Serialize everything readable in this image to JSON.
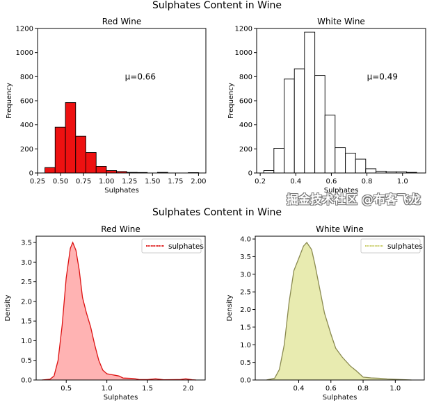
{
  "figures": [
    {
      "suptitle": "Sulphates Content in Wine"
    },
    {
      "suptitle": "Sulphates Content in Wine"
    }
  ],
  "watermark": "掘金技术社区 @布客飞龙",
  "chart_data": [
    {
      "type": "bar",
      "subtype": "histogram",
      "title": "Red Wine",
      "xlabel": "Sulphates",
      "ylabel": "Frequency",
      "bar_color": "#ee1111",
      "edge_color": "#000000",
      "bin_edges": [
        0.33,
        0.441,
        0.553,
        0.664,
        0.775,
        0.887,
        0.998,
        1.109,
        1.22,
        1.332,
        1.443,
        1.554,
        1.666,
        1.777,
        1.888,
        2.0
      ],
      "values": [
        45,
        380,
        585,
        305,
        170,
        55,
        20,
        12,
        5,
        4,
        0,
        5,
        0,
        0,
        3
      ],
      "xlim": [
        0.25,
        2.08
      ],
      "ylim": [
        0,
        1200
      ],
      "xtick_labels": [
        "0.25",
        "0.50",
        "0.75",
        "1.00",
        "1.25",
        "1.50",
        "1.75",
        "2.00"
      ],
      "ytick_labels": [
        "0",
        "200",
        "400",
        "600",
        "800",
        "1000",
        "1200"
      ],
      "annotation": {
        "text": "μ=0.66",
        "x": 1.2,
        "y": 800
      },
      "grid": false
    },
    {
      "type": "bar",
      "subtype": "histogram",
      "title": "White Wine",
      "xlabel": "Sulphates",
      "ylabel": "Frequency",
      "bar_color": "#ffffff",
      "edge_color": "#000000",
      "bin_edges": [
        0.22,
        0.277,
        0.335,
        0.392,
        0.449,
        0.507,
        0.564,
        0.621,
        0.679,
        0.736,
        0.793,
        0.851,
        0.908,
        0.965,
        1.023,
        1.08
      ],
      "values": [
        20,
        205,
        780,
        865,
        1170,
        810,
        480,
        210,
        165,
        115,
        35,
        15,
        10,
        10,
        5
      ],
      "xlim": [
        0.18,
        1.13
      ],
      "ylim": [
        0,
        1200
      ],
      "xtick_labels": [
        "0.2",
        "0.4",
        "0.6",
        "0.8",
        "1.0"
      ],
      "ytick_labels": [
        "0",
        "200",
        "400",
        "600",
        "800",
        "1000",
        "1200"
      ],
      "annotation": {
        "text": "μ=0.49",
        "x": 0.8,
        "y": 800
      },
      "grid": false
    },
    {
      "type": "area",
      "subtype": "kde",
      "title": "Red Wine",
      "xlabel": "Sulphates",
      "ylabel": "Density",
      "line_color": "#dd1111",
      "fill_color": "#ffb3b3",
      "legend": {
        "label": "sulphates",
        "position": "top-right"
      },
      "x": [
        0.2,
        0.3,
        0.35,
        0.4,
        0.45,
        0.5,
        0.55,
        0.58,
        0.62,
        0.66,
        0.7,
        0.75,
        0.8,
        0.85,
        0.9,
        0.95,
        1.0,
        1.05,
        1.1,
        1.15,
        1.2,
        1.3,
        1.35,
        1.4,
        1.5,
        1.6,
        1.7,
        1.9,
        1.97,
        2.05,
        2.1
      ],
      "y": [
        0,
        0.02,
        0.1,
        0.5,
        1.4,
        2.6,
        3.35,
        3.5,
        3.3,
        2.8,
        2.1,
        1.7,
        1.35,
        0.9,
        0.5,
        0.25,
        0.16,
        0.14,
        0.12,
        0.1,
        0.05,
        0.04,
        0.03,
        0.01,
        0.01,
        0.03,
        0.005,
        0.01,
        0.03,
        0.005,
        0
      ],
      "xlim": [
        0.13,
        2.21
      ],
      "ylim": [
        0,
        3.66
      ],
      "xtick_labels": [
        "0.5",
        "1.0",
        "1.5",
        "2.0"
      ],
      "ytick_labels": [
        "0.0",
        "0.5",
        "1.0",
        "1.5",
        "2.0",
        "2.5",
        "3.0",
        "3.5"
      ],
      "grid": false
    },
    {
      "type": "area",
      "subtype": "kde",
      "title": "White Wine",
      "xlabel": "Sulphates",
      "ylabel": "Density",
      "line_color": "#8a8a50",
      "fill_color": "#e8ebb0",
      "legend": {
        "label": "sulphates",
        "position": "top-right",
        "swatch_color": "#c8cc66"
      },
      "x": [
        0.2,
        0.25,
        0.28,
        0.31,
        0.34,
        0.37,
        0.4,
        0.43,
        0.45,
        0.48,
        0.5,
        0.53,
        0.56,
        0.6,
        0.63,
        0.67,
        0.72,
        0.76,
        0.8,
        0.85,
        0.9,
        0.95,
        1.0,
        1.05,
        1.1
      ],
      "y": [
        0,
        0.05,
        0.3,
        1.0,
        2.2,
        3.1,
        3.45,
        3.8,
        3.9,
        3.7,
        3.3,
        2.6,
        1.9,
        1.3,
        0.9,
        0.65,
        0.4,
        0.25,
        0.08,
        0.06,
        0.05,
        0.03,
        0.02,
        0.01,
        0
      ],
      "xlim": [
        0.13,
        1.18
      ],
      "ylim": [
        0,
        4.08
      ],
      "xtick_labels": [
        "0.4",
        "0.6",
        "0.8",
        "1.0"
      ],
      "ytick_labels": [
        "0.0",
        "0.5",
        "1.0",
        "1.5",
        "2.0",
        "2.5",
        "3.0",
        "3.5",
        "4.0"
      ],
      "grid": false
    }
  ]
}
